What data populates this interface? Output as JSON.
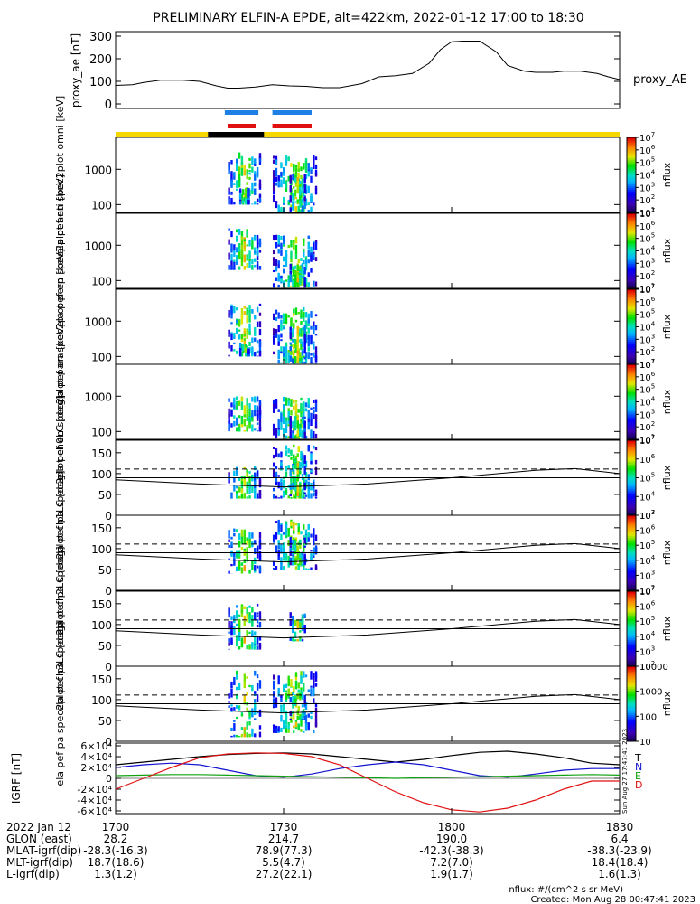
{
  "title": "PRELIMINARY ELFIN-A EPDE, alt=422km, 2022-01-12 17:00 to 18:30",
  "colors": {
    "axis": "#000000",
    "indicator_blue": "#1e7fe6",
    "indicator_red": "#e01010",
    "science_bar": "#f5d800",
    "fast_bar": "#000000",
    "gei_x": "#000000",
    "gei_y": "#1414d0",
    "gei_z": "#10a010",
    "gei_d": "#e01010"
  },
  "indicator_bars": [
    {
      "color": "blue",
      "x_start_min": 19.5,
      "x_end_min": 25.5
    },
    {
      "color": "red",
      "x_start_min": 20.0,
      "x_end_min": 25.0
    },
    {
      "color": "blue",
      "x_start_min": 28.0,
      "x_end_min": 35.0
    },
    {
      "color": "red",
      "x_start_min": 28.0,
      "x_end_min": 35.0
    }
  ],
  "state_bar": {
    "yellow": [
      0,
      90
    ],
    "black": [
      16.5,
      26.5
    ]
  },
  "chart_data": [
    {
      "type": "line",
      "ylabel": "proxy_ae [nT]",
      "legend": "proxy_AE",
      "ylim": [
        -20,
        320
      ],
      "yticks": [
        0,
        100,
        200,
        300
      ],
      "x_minutes": [
        0,
        3,
        5,
        8,
        12,
        15,
        18,
        20,
        22,
        25,
        28,
        31,
        34,
        37,
        40,
        44,
        47,
        50,
        53,
        56,
        58,
        60,
        62,
        65,
        68,
        70,
        73,
        75,
        78,
        80,
        83,
        86,
        88,
        90
      ],
      "values": [
        82,
        85,
        95,
        105,
        105,
        100,
        80,
        70,
        70,
        75,
        85,
        80,
        78,
        72,
        72,
        90,
        120,
        125,
        135,
        180,
        240,
        275,
        278,
        278,
        230,
        170,
        145,
        140,
        140,
        145,
        145,
        135,
        120,
        108
      ]
    },
    {
      "type": "heatmap",
      "ylabel": "ela pef en spec2plot omni [keV]",
      "scale": "log",
      "ylim": [
        60,
        8000
      ],
      "yticks": [
        100,
        1000
      ],
      "ytick_labels": [
        "100",
        "1000"
      ],
      "cbar_label": "nflux",
      "cbar_range": [
        10,
        10000000
      ],
      "columns": [
        [
          20,
          26,
          2.0,
          3.5
        ],
        [
          22,
          24,
          2.0,
          2.5
        ],
        [
          28,
          36,
          1.8,
          3.4
        ],
        [
          31,
          34,
          1.8,
          2.9
        ]
      ]
    },
    {
      "type": "heatmap",
      "ylabel": "ela pef en spec2plot anti [keV]",
      "scale": "log",
      "ylim": [
        60,
        8000
      ],
      "yticks": [
        100,
        1000
      ],
      "ytick_labels": [
        "100",
        "1000"
      ],
      "cbar_label": "nflux",
      "cbar_range": [
        10,
        10000000
      ],
      "columns": [
        [
          20,
          26,
          2.3,
          3.5
        ],
        [
          28,
          36,
          1.8,
          3.3
        ],
        [
          31,
          34,
          1.8,
          2.5
        ]
      ]
    },
    {
      "type": "heatmap",
      "ylabel": "ela pef en spec2plot perp [keV]",
      "scale": "log",
      "ylim": [
        60,
        8000
      ],
      "yticks": [
        100,
        1000
      ],
      "ytick_labels": [
        "100",
        "1000"
      ],
      "cbar_label": "nflux",
      "cbar_range": [
        10,
        10000000
      ],
      "columns": [
        [
          20,
          26,
          2.0,
          3.5
        ],
        [
          22,
          24,
          2.0,
          2.4
        ],
        [
          28,
          36,
          1.8,
          3.4
        ],
        [
          31,
          34,
          1.8,
          2.9
        ]
      ]
    },
    {
      "type": "heatmap",
      "ylabel": "ela pef en spec2plot para [keV]",
      "scale": "log",
      "ylim": [
        60,
        8000
      ],
      "yticks": [
        100,
        1000
      ],
      "ytick_labels": [
        "100",
        "1000"
      ],
      "cbar_label": "nflux",
      "cbar_range": [
        10,
        10000000
      ],
      "columns": [
        [
          20,
          26,
          2.0,
          3.0
        ],
        [
          28,
          36,
          1.8,
          3.0
        ],
        [
          31,
          34,
          1.8,
          2.5
        ]
      ]
    },
    {
      "type": "heatmap",
      "ylabel": "ela pef pa spec2plot ch0LC [deg]",
      "scale": "linear",
      "ylim": [
        0,
        180
      ],
      "yticks": [
        0,
        50,
        100,
        150
      ],
      "ytick_labels": [
        "0",
        "50",
        "100",
        "150"
      ],
      "cbar_label": "nflux",
      "cbar_range": [
        1000,
        10000000
      ],
      "columns": [
        [
          20,
          26,
          40,
          120
        ],
        [
          28,
          36,
          40,
          170
        ],
        [
          31,
          34,
          40,
          150
        ]
      ]
    },
    {
      "type": "heatmap",
      "ylabel": "ela pef pa spec2plot ch1LC [deg]",
      "scale": "linear",
      "ylim": [
        0,
        180
      ],
      "yticks": [
        0,
        50,
        100,
        150
      ],
      "ytick_labels": [
        "0",
        "50",
        "100",
        "150"
      ],
      "cbar_label": "nflux",
      "cbar_range": [
        100,
        10000000
      ],
      "columns": [
        [
          20,
          26,
          40,
          150
        ],
        [
          28,
          36,
          50,
          170
        ],
        [
          31,
          34,
          60,
          130
        ]
      ]
    },
    {
      "type": "heatmap",
      "ylabel": "ela pef pa spec2plot ch2LC [deg]",
      "scale": "linear",
      "ylim": [
        0,
        180
      ],
      "yticks": [
        0,
        50,
        100,
        150
      ],
      "ytick_labels": [
        "0",
        "50",
        "100",
        "150"
      ],
      "cbar_label": "nflux",
      "cbar_range": [
        100,
        10000000
      ],
      "columns": [
        [
          20,
          26,
          40,
          150
        ],
        [
          31,
          34,
          60,
          130
        ]
      ]
    },
    {
      "type": "heatmap",
      "ylabel": "ela pef pa spec2plot ch3LC [deg]",
      "scale": "linear",
      "ylim": [
        0,
        180
      ],
      "yticks": [
        0,
        50,
        100,
        150
      ],
      "ytick_labels": [
        "0",
        "50",
        "100",
        "150"
      ],
      "cbar_label": "nflux",
      "cbar_range": [
        10,
        10000
      ],
      "columns": [
        [
          20,
          26,
          10,
          170
        ],
        [
          28,
          36,
          20,
          170
        ],
        [
          31,
          34,
          50,
          120
        ]
      ]
    },
    {
      "type": "line",
      "ylabel": "IGRF [nT]",
      "ylim": [
        -65000,
        65000
      ],
      "yticks": [
        -60000,
        -40000,
        -20000,
        0,
        20000,
        40000,
        60000
      ],
      "ytick_labels": [
        "-6×10⁴",
        "-4×10⁴",
        "-2×10⁴",
        "0",
        "2×10⁴",
        "4×10⁴",
        "6×10⁴"
      ],
      "x_minutes": [
        0,
        5,
        10,
        15,
        20,
        25,
        30,
        35,
        40,
        45,
        50,
        55,
        60,
        65,
        70,
        75,
        80,
        85,
        90
      ],
      "series": [
        {
          "name": "T",
          "color": "#000000",
          "values": [
            25000,
            30000,
            35000,
            40000,
            44000,
            46000,
            47000,
            45000,
            40000,
            35000,
            30000,
            35000,
            42000,
            48000,
            50000,
            45000,
            38000,
            28000,
            25000
          ]
        },
        {
          "name": "N",
          "color": "#1414d0",
          "values": [
            20000,
            25000,
            28000,
            25000,
            15000,
            5000,
            2000,
            8000,
            18000,
            25000,
            30000,
            25000,
            15000,
            5000,
            2000,
            8000,
            15000,
            18000,
            18000
          ]
        },
        {
          "name": "E",
          "color": "#10a010",
          "values": [
            5000,
            6000,
            7000,
            7000,
            6000,
            5000,
            4000,
            3000,
            2000,
            1000,
            0,
            1000,
            2000,
            3000,
            4000,
            5000,
            6000,
            7000,
            6000
          ]
        },
        {
          "name": "D",
          "color": "#e01010",
          "values": [
            -20000,
            0,
            20000,
            38000,
            45000,
            47000,
            46000,
            40000,
            25000,
            0,
            -25000,
            -45000,
            -58000,
            -62000,
            -55000,
            -40000,
            -20000,
            -5000,
            -5000
          ]
        }
      ]
    }
  ],
  "x_axis": {
    "ticks": [
      0,
      30,
      60,
      90
    ],
    "rows": [
      {
        "label": "2022 Jan 12",
        "values": [
          "1700",
          "1730",
          "1800",
          "1830"
        ]
      },
      {
        "label": "GLON (east)",
        "values": [
          "28.2",
          "214.7",
          "190.0",
          "6.4"
        ]
      },
      {
        "label": "MLAT-igrf(dip)",
        "values": [
          "-28.3(-16.3)",
          "78.9(77.3)",
          "-42.3(-38.3)",
          "-38.3(-23.9)"
        ]
      },
      {
        "label": "MLT-igrf(dip)",
        "values": [
          "18.7(18.6)",
          "5.5(4.7)",
          "7.2(7.0)",
          "18.4(18.4)"
        ]
      },
      {
        "label": "L-igrf(dip)",
        "values": [
          "1.3(1.2)",
          "27.2(22.1)",
          "1.9(1.7)",
          "1.6(1.3)"
        ]
      }
    ]
  },
  "footer": {
    "units": "nflux: #/(cm^2 s sr MeV)",
    "created": "Created: Mon Aug 28 00:47:41 2023",
    "side_stamp": "Sun Aug 27 17:47:41 2023"
  }
}
